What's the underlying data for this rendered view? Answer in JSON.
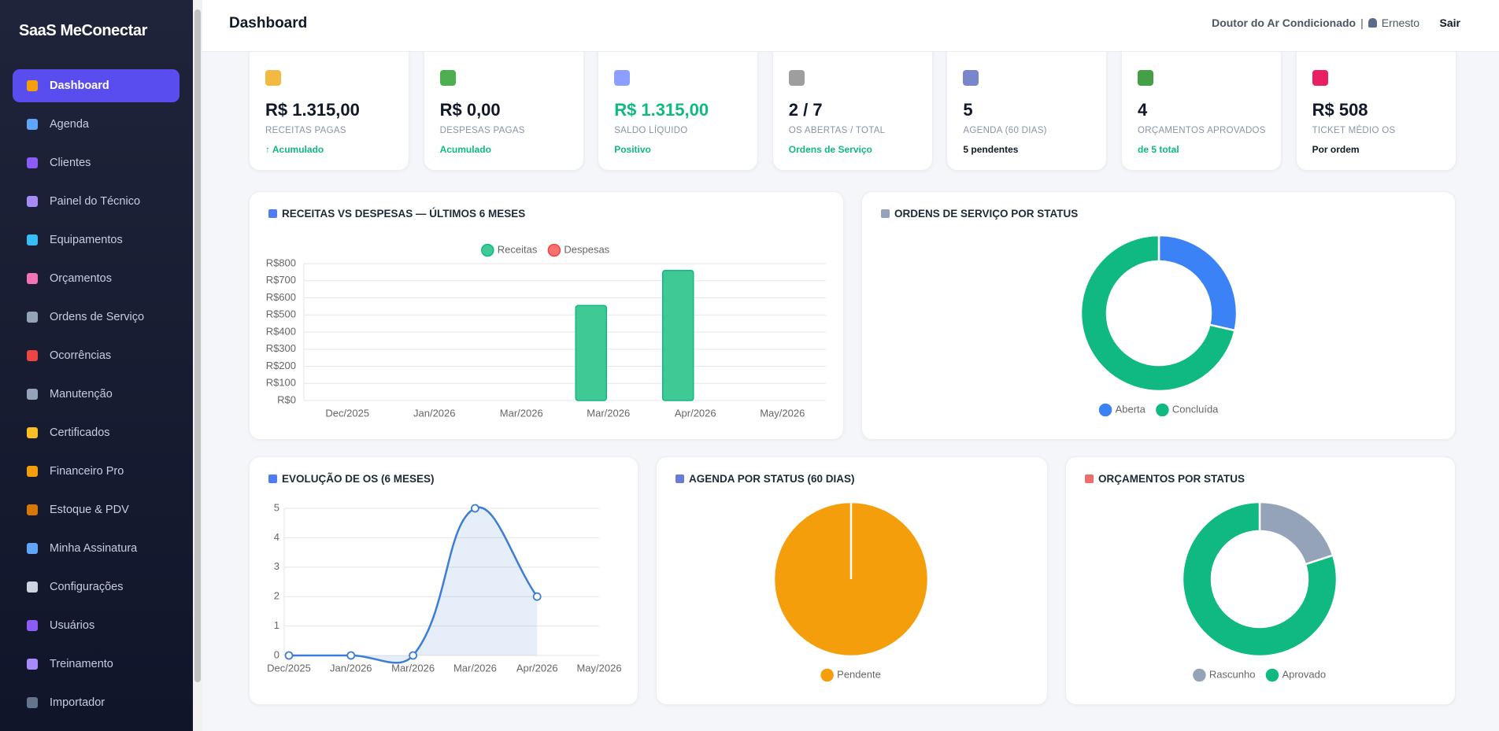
{
  "sidebar": {
    "brand": "SaaS MeConectar",
    "items": [
      "Dashboard",
      "Agenda",
      "Clientes",
      "Painel do Técnico",
      "Equipamentos",
      "Orçamentos",
      "Ordens de Serviço",
      "Ocorrências",
      "Manutenção",
      "Certificados",
      "Financeiro Pro",
      "Estoque & PDV",
      "Minha Assinatura",
      "Configurações",
      "Usuários",
      "Treinamento",
      "Importador"
    ]
  },
  "header": {
    "title": "Dashboard",
    "company": "Doutor do Ar Condicionado",
    "separator": "|",
    "user": "Ernesto",
    "logout": "Sair"
  },
  "kpis": [
    {
      "value": "R$ 1.315,00",
      "label": "RECEITAS PAGAS",
      "note": "↑ Acumulado",
      "note_color": "#10b981"
    },
    {
      "value": "R$ 0,00",
      "label": "DESPESAS PAGAS",
      "note": "Acumulado",
      "note_color": "#10b981"
    },
    {
      "value": "R$ 1.315,00",
      "value_color": "#10b981",
      "label": "SALDO LÍQUIDO",
      "note": "Positivo",
      "note_color": "#10b981"
    },
    {
      "value": "2 / 7",
      "label": "OS ABERTAS / TOTAL",
      "note": "Ordens de Serviço",
      "note_color": "#10b981"
    },
    {
      "value": "5",
      "label": "AGENDA (60 DIAS)",
      "note": "5 pendentes",
      "note_color": "#111827"
    },
    {
      "value": "4",
      "label": "ORÇAMENTOS APROVADOS",
      "note": "de 5 total",
      "note_color": "#10b981"
    },
    {
      "value": "R$ 508",
      "label": "TICKET MÉDIO OS",
      "note": "Por ordem",
      "note_color": "#111827"
    }
  ],
  "charts": [
    {
      "type": "bar",
      "title": "RECEITAS VS DESPESAS — ÚLTIMOS 6 MESES",
      "categories": [
        "Dec/2025",
        "Jan/2026",
        "Mar/2026",
        "Mar/2026",
        "Apr/2026",
        "May/2026"
      ],
      "series": [
        {
          "name": "Receitas",
          "color": "#3ec995",
          "values": [
            0,
            0,
            0,
            555,
            760,
            0
          ]
        },
        {
          "name": "Despesas",
          "color": "#f87171",
          "values": [
            0,
            0,
            0,
            0,
            0,
            0
          ]
        }
      ],
      "ylim": [
        0,
        800
      ],
      "yticks": [
        {
          "value": 0,
          "label": "R$0"
        },
        {
          "value": 100,
          "label": "R$100"
        },
        {
          "value": 200,
          "label": "R$200"
        },
        {
          "value": 300,
          "label": "R$300"
        },
        {
          "value": 400,
          "label": "R$400"
        },
        {
          "value": 500,
          "label": "R$500"
        },
        {
          "value": 600,
          "label": "R$600"
        },
        {
          "value": 700,
          "label": "R$700"
        },
        {
          "value": 800,
          "label": "R$800"
        }
      ],
      "grid": true,
      "legend": "top"
    },
    {
      "type": "doughnut",
      "title": "ORDENS DE SERVIÇO POR STATUS",
      "categories": [
        "Aberta",
        "Concluída"
      ],
      "values": [
        2,
        5
      ],
      "colors": [
        "#3b82f6",
        "#10b981"
      ],
      "legend": "bottom"
    },
    {
      "type": "line",
      "title": "EVOLUÇÃO DE OS (6 MESES)",
      "categories": [
        "Dec/2025",
        "Jan/2026",
        "Mar/2026",
        "Mar/2026",
        "Apr/2026",
        "May/2026"
      ],
      "values": [
        0,
        0,
        0,
        5,
        2,
        null
      ],
      "color": "#3b7dd8",
      "ylim": [
        0,
        5
      ],
      "yticks": [
        0,
        1,
        2,
        3,
        4,
        5
      ],
      "grid": true
    },
    {
      "type": "pie",
      "title": "AGENDA POR STATUS (60 DIAS)",
      "categories": [
        "Pendente"
      ],
      "values": [
        5
      ],
      "colors": [
        "#f59e0b"
      ],
      "legend": "bottom"
    },
    {
      "type": "doughnut",
      "title": "ORÇAMENTOS POR STATUS",
      "categories": [
        "Rascunho",
        "Aprovado"
      ],
      "values": [
        1,
        4
      ],
      "colors": [
        "#94a3b8",
        "#10b981"
      ],
      "legend": "bottom"
    }
  ]
}
